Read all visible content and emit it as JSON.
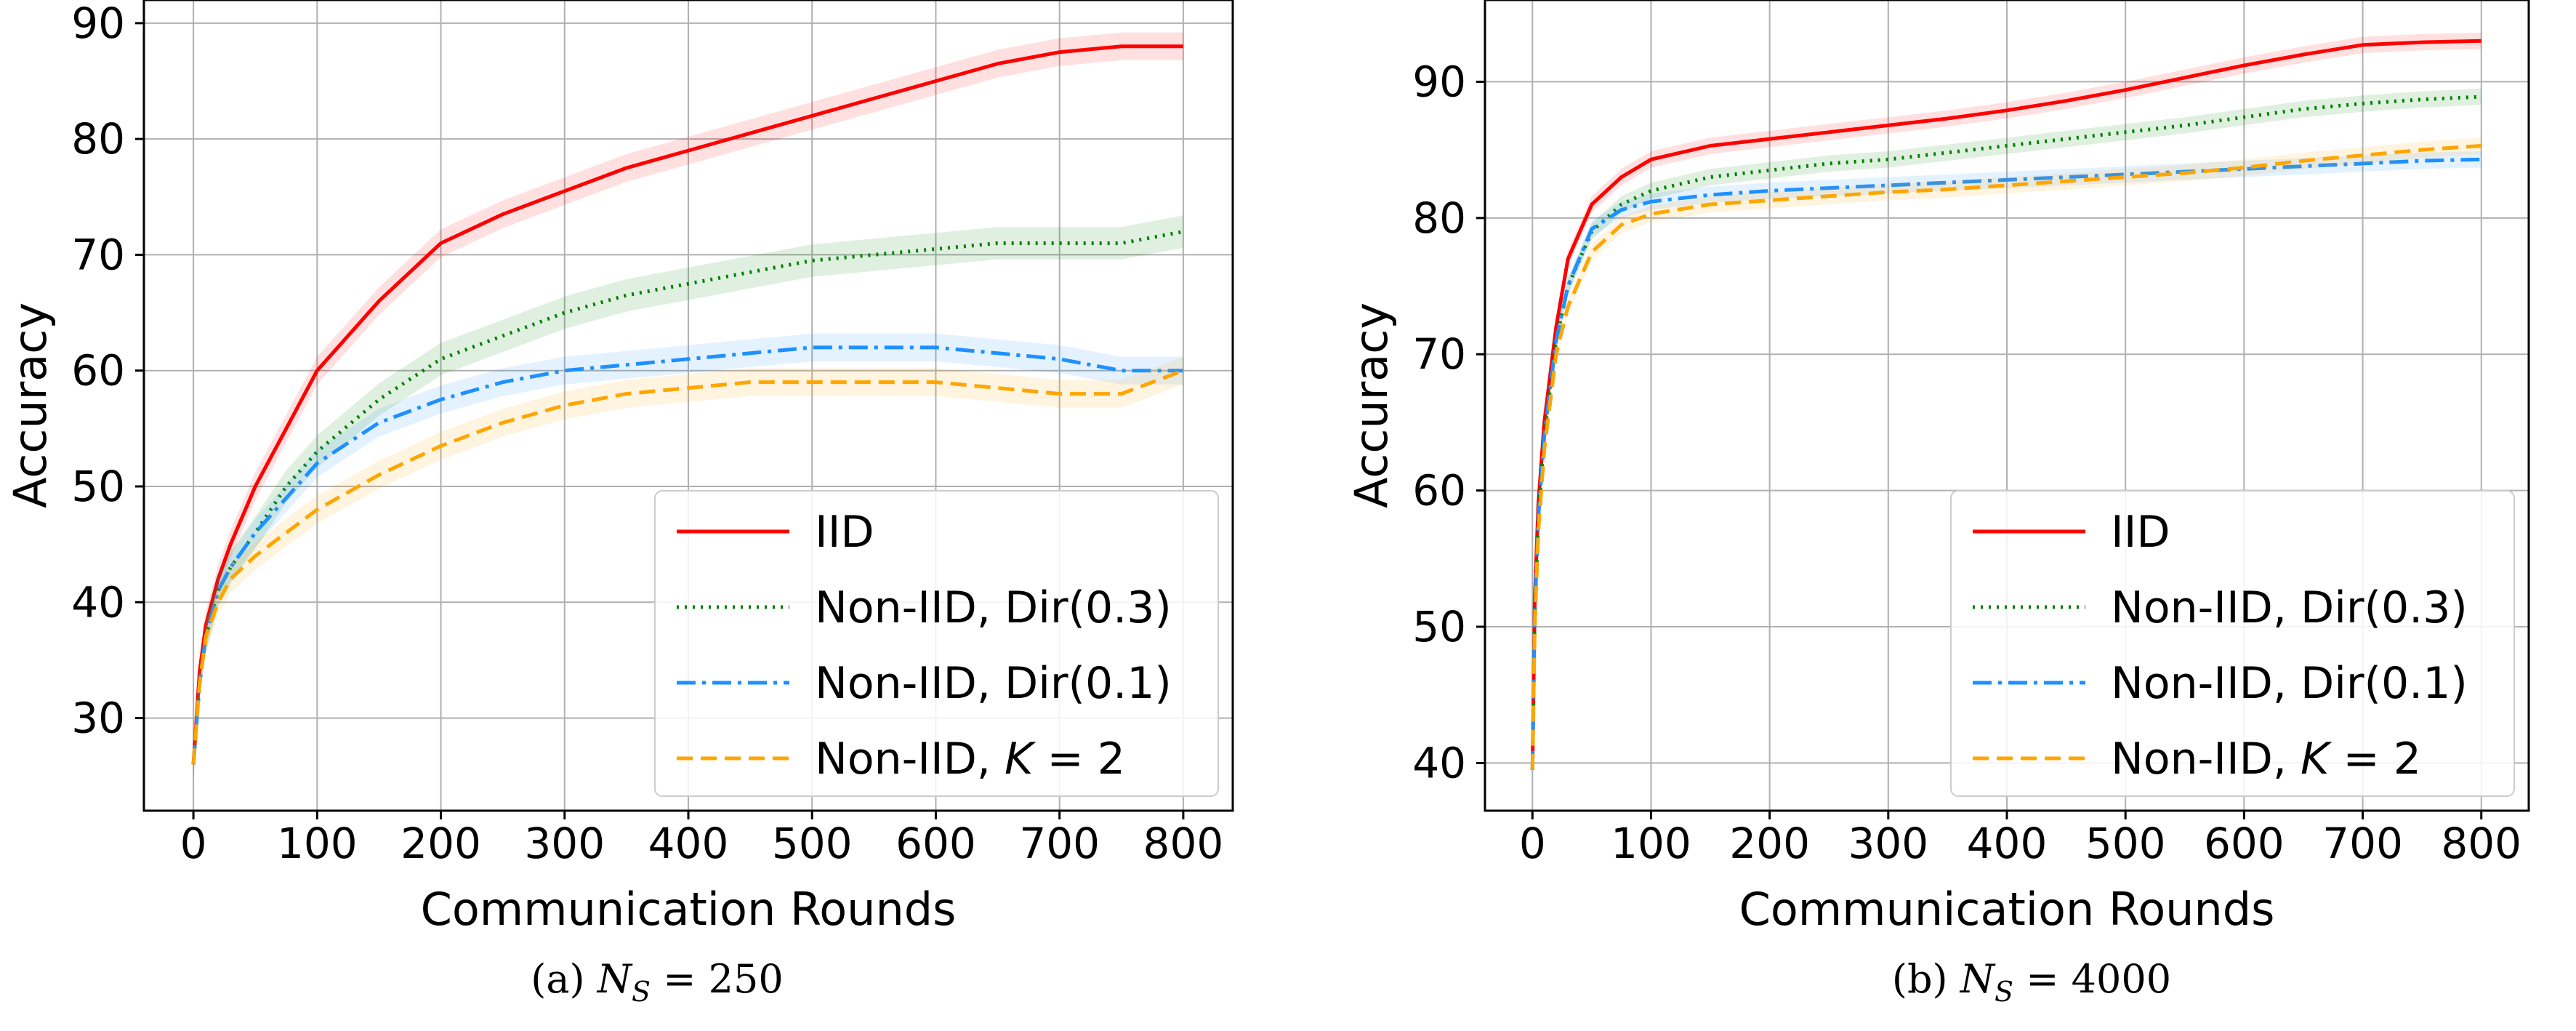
{
  "chart_data": [
    {
      "type": "line",
      "caption_prefix": "(a) ",
      "caption_math": "N",
      "caption_sub": "S",
      "caption_value": " = 250",
      "xlabel": "Communication Rounds",
      "ylabel": "Accuracy",
      "xlim": [
        -40,
        840
      ],
      "ylim": [
        22,
        92
      ],
      "xticks": [
        0,
        100,
        200,
        300,
        400,
        500,
        600,
        700,
        800
      ],
      "yticks": [
        30,
        40,
        50,
        60,
        70,
        80,
        90
      ],
      "grid": true,
      "legend_position": "lower-right",
      "series": [
        {
          "name": "IID",
          "color": "#ff0000",
          "style": "solid",
          "band": 1.2,
          "x": [
            0,
            5,
            10,
            20,
            30,
            50,
            75,
            100,
            150,
            200,
            250,
            300,
            350,
            400,
            450,
            500,
            550,
            600,
            650,
            700,
            750,
            800
          ],
          "y": [
            26,
            34,
            38,
            42,
            45,
            50,
            55,
            60,
            66,
            71,
            73.5,
            75.5,
            77.5,
            79,
            80.5,
            82,
            83.5,
            85,
            86.5,
            87.5,
            88,
            88
          ]
        },
        {
          "name": "Non-IID, Dir(0.3)",
          "color": "#008000",
          "style": "dotted",
          "band": 1.4,
          "x": [
            0,
            5,
            10,
            20,
            30,
            50,
            75,
            100,
            150,
            200,
            250,
            300,
            350,
            400,
            450,
            500,
            550,
            600,
            650,
            700,
            750,
            800
          ],
          "y": [
            26,
            33,
            37,
            41,
            43,
            46,
            50,
            53,
            57.5,
            61,
            63,
            65,
            66.5,
            67.5,
            68.5,
            69.5,
            70,
            70.5,
            71,
            71,
            71,
            72
          ]
        },
        {
          "name": "Non-IID, Dir(0.1)",
          "color": "#1e90ff",
          "style": "dashdot",
          "band": 1.2,
          "x": [
            0,
            5,
            10,
            20,
            30,
            50,
            75,
            100,
            150,
            200,
            250,
            300,
            350,
            400,
            450,
            500,
            550,
            600,
            650,
            700,
            750,
            800
          ],
          "y": [
            26,
            33,
            37,
            41,
            43,
            46,
            49,
            52,
            55.5,
            57.5,
            59,
            60,
            60.5,
            61,
            61.5,
            62,
            62,
            62,
            61.5,
            61,
            60,
            60
          ]
        },
        {
          "name": "Non-IID, K = 2",
          "name_prefix": "Non-IID, ",
          "name_var": "K",
          "name_suffix": " = 2",
          "color": "#ffa500",
          "style": "dashed",
          "band": 1.2,
          "x": [
            0,
            5,
            10,
            20,
            30,
            50,
            75,
            100,
            150,
            200,
            250,
            300,
            350,
            400,
            450,
            500,
            550,
            600,
            650,
            700,
            750,
            800
          ],
          "y": [
            26,
            33,
            37,
            40,
            42,
            44,
            46,
            48,
            51,
            53.5,
            55.5,
            57,
            58,
            58.5,
            59,
            59,
            59,
            59,
            58.5,
            58,
            58,
            60
          ]
        }
      ]
    },
    {
      "type": "line",
      "caption_prefix": "(b) ",
      "caption_math": "N",
      "caption_sub": "S",
      "caption_value": " = 4000",
      "xlabel": "Communication Rounds",
      "ylabel": "Accuracy",
      "xlim": [
        -40,
        840
      ],
      "ylim": [
        36.5,
        96
      ],
      "xticks": [
        0,
        100,
        200,
        300,
        400,
        500,
        600,
        700,
        800
      ],
      "yticks": [
        40,
        50,
        60,
        70,
        80,
        90
      ],
      "grid": true,
      "legend_position": "lower-right",
      "series": [
        {
          "name": "IID",
          "color": "#ff0000",
          "style": "solid",
          "band": 0.6,
          "x": [
            0,
            2,
            5,
            10,
            20,
            30,
            50,
            75,
            100,
            150,
            200,
            250,
            300,
            350,
            400,
            450,
            500,
            550,
            600,
            650,
            700,
            750,
            800
          ],
          "y": [
            39.5,
            52,
            59,
            65,
            72,
            77,
            81,
            83,
            84.3,
            85.3,
            85.8,
            86.3,
            86.8,
            87.3,
            87.9,
            88.6,
            89.4,
            90.3,
            91.2,
            92,
            92.7,
            92.9,
            93
          ]
        },
        {
          "name": "Non-IID, Dir(0.3)",
          "color": "#008000",
          "style": "dotted",
          "band": 0.6,
          "x": [
            0,
            2,
            5,
            10,
            20,
            30,
            50,
            75,
            100,
            150,
            200,
            250,
            300,
            350,
            400,
            450,
            500,
            550,
            600,
            650,
            700,
            750,
            800
          ],
          "y": [
            39.5,
            51,
            58,
            64,
            71,
            75,
            79,
            81,
            82,
            83,
            83.5,
            84,
            84.3,
            84.8,
            85.3,
            85.8,
            86.3,
            86.8,
            87.4,
            88,
            88.4,
            88.7,
            88.9
          ]
        },
        {
          "name": "Non-IID, Dir(0.1)",
          "color": "#1e90ff",
          "style": "dashdot",
          "band": 0.6,
          "x": [
            0,
            2,
            5,
            10,
            20,
            30,
            50,
            75,
            100,
            150,
            200,
            250,
            300,
            350,
            400,
            450,
            500,
            550,
            600,
            650,
            700,
            750,
            800
          ],
          "y": [
            39.5,
            51,
            58,
            64,
            71,
            75,
            79.2,
            80.6,
            81.2,
            81.7,
            82,
            82.2,
            82.4,
            82.6,
            82.8,
            83,
            83.2,
            83.4,
            83.6,
            83.8,
            84,
            84.2,
            84.3
          ]
        },
        {
          "name": "Non-IID, K = 2",
          "name_prefix": "Non-IID, ",
          "name_var": "K",
          "name_suffix": " = 2",
          "color": "#ffa500",
          "style": "dashed",
          "band": 0.6,
          "x": [
            0,
            2,
            5,
            10,
            20,
            30,
            50,
            75,
            100,
            150,
            200,
            250,
            300,
            350,
            400,
            450,
            500,
            550,
            600,
            650,
            700,
            750,
            800
          ],
          "y": [
            39.5,
            50,
            57,
            63,
            70,
            73.5,
            77.5,
            79.5,
            80.3,
            81,
            81.3,
            81.6,
            81.9,
            82.1,
            82.4,
            82.7,
            83,
            83.3,
            83.7,
            84.2,
            84.6,
            85,
            85.3
          ]
        }
      ]
    }
  ]
}
